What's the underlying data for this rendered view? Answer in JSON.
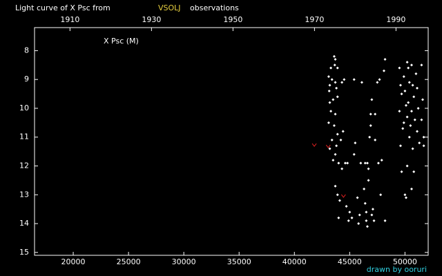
{
  "chart_data": {
    "type": "scatter",
    "title": "Light curve of X Psc from",
    "title_source": "VSOLJ",
    "title_suffix": "observations",
    "y_label": "X Psc (M)",
    "credit": "drawn by ooruri",
    "xlim": [
      16500,
      52100
    ],
    "xticks": [
      20000,
      25000,
      30000,
      35000,
      40000,
      45000,
      50000
    ],
    "x2lim": [
      1901.3,
      1997.9
    ],
    "x2ticks": [
      1910,
      1930,
      1950,
      1970,
      1990
    ],
    "ylim": [
      7.2,
      15.1
    ],
    "y_inverted": true,
    "yticks": [
      8,
      9,
      10,
      11,
      12,
      13,
      14,
      15
    ],
    "series": [
      {
        "color": "#ffffff",
        "marker": "dot",
        "x": [
          43100,
          43200,
          43300,
          43600,
          43700,
          43650,
          43900,
          43150,
          43400,
          43700,
          43800,
          43200,
          43500,
          43900,
          43300,
          43700,
          43100,
          43600,
          43900,
          43400,
          43800,
          43200,
          43700,
          43500,
          44000,
          43700,
          43900,
          44100,
          44000,
          44300,
          44200,
          44400,
          44300,
          44500,
          44600,
          44800,
          44700,
          45000,
          44900,
          45200,
          45400,
          45500,
          45400,
          45700,
          45900,
          45800,
          46000,
          46100,
          46300,
          46400,
          46500,
          46600,
          46500,
          46400,
          46600,
          46700,
          46800,
          46900,
          47000,
          46900,
          46700,
          47000,
          47200,
          47100,
          47300,
          47500,
          47700,
          47300,
          47600,
          47900,
          47800,
          48200,
          48100,
          48200,
          49500,
          49600,
          49700,
          49500,
          49800,
          49600,
          49700,
          49900,
          50000,
          50100,
          50200,
          50300,
          50400,
          50300,
          50200,
          50500,
          50400,
          50600,
          50700,
          50800,
          50600,
          50900,
          50700,
          51000,
          51100,
          51200,
          51100,
          51300,
          51500,
          51600,
          51500,
          51700,
          51700,
          50200,
          50800,
          50600,
          50000,
          50100,
          49900
        ],
        "values": [
          8.9,
          9.2,
          8.6,
          8.2,
          8.3,
          8.5,
          8.6,
          9.4,
          9.0,
          9.1,
          9.3,
          9.8,
          9.7,
          9.6,
          10.1,
          10.2,
          10.5,
          10.6,
          10.9,
          11.1,
          11.3,
          11.4,
          11.6,
          11.8,
          11.9,
          12.7,
          13.0,
          13.2,
          13.8,
          12.1,
          11.1,
          10.8,
          9.1,
          9.0,
          11.9,
          11.9,
          13.4,
          13.6,
          13.9,
          13.8,
          9.0,
          11.2,
          11.6,
          13.1,
          13.7,
          14.0,
          11.9,
          9.1,
          12.8,
          13.3,
          13.6,
          14.1,
          13.9,
          11.9,
          11.9,
          12.1,
          11.0,
          10.6,
          9.7,
          10.2,
          12.5,
          13.7,
          13.9,
          13.5,
          10.2,
          9.1,
          9.0,
          11.1,
          11.9,
          11.8,
          13.0,
          13.9,
          8.7,
          8.3,
          8.6,
          9.2,
          9.5,
          10.1,
          10.7,
          11.3,
          12.2,
          8.9,
          9.4,
          9.9,
          8.4,
          8.6,
          9.1,
          9.8,
          10.3,
          10.6,
          11.0,
          8.5,
          9.2,
          9.6,
          10.1,
          10.4,
          11.4,
          8.8,
          9.3,
          10.0,
          10.8,
          11.2,
          8.5,
          9.7,
          10.4,
          11.0,
          11.3,
          12.0,
          12.2,
          12.8,
          13.0,
          13.1,
          10.5
        ]
      },
      {
        "color": "#e02020",
        "marker": "v",
        "x": [
          41800,
          43060,
          44440
        ],
        "values": [
          11.27,
          11.32,
          13.04
        ]
      }
    ]
  }
}
